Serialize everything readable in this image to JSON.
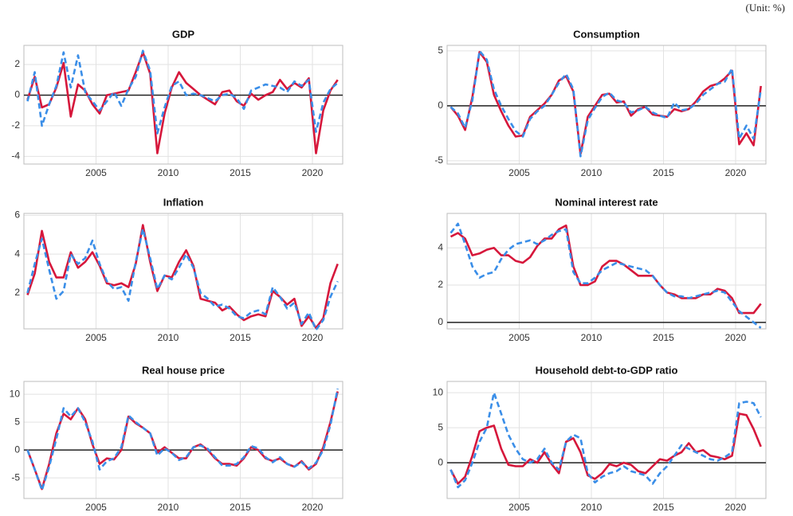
{
  "unit_note": "(Unit: %)",
  "chart_data": [
    {
      "type": "line",
      "title": "GDP",
      "x": [
        2000.25,
        2000.75,
        2001.25,
        2001.75,
        2002.25,
        2002.75,
        2003.25,
        2003.75,
        2004.25,
        2004.75,
        2005.25,
        2005.75,
        2006.25,
        2006.75,
        2007.25,
        2007.75,
        2008.25,
        2008.75,
        2009.25,
        2009.75,
        2010.25,
        2010.75,
        2011.25,
        2011.75,
        2012.25,
        2012.75,
        2013.25,
        2013.75,
        2014.25,
        2014.75,
        2015.25,
        2015.75,
        2016.25,
        2016.75,
        2017.25,
        2017.75,
        2018.25,
        2018.75,
        2019.25,
        2019.75,
        2020.25,
        2020.75,
        2021.25,
        2021.75
      ],
      "xlim": [
        2000,
        2022.1
      ],
      "xticks": [
        2005,
        2010,
        2015,
        2020
      ],
      "ylim": [
        -4.5,
        3.25
      ],
      "yticks": [
        -4,
        -2,
        0,
        2
      ],
      "grid": true,
      "hlines": [
        0
      ],
      "series": [
        {
          "color": "#d6173b",
          "line_style": "solid",
          "values": [
            -0.3,
            1.2,
            -0.8,
            -0.6,
            0.5,
            2.1,
            -1.4,
            0.7,
            0.3,
            -0.6,
            -1.2,
            0,
            0.1,
            0.2,
            0.3,
            1.5,
            2.8,
            1.4,
            -3.8,
            -1.2,
            0.5,
            1.5,
            0.8,
            0.4,
            0,
            -0.3,
            -0.6,
            0.2,
            0.3,
            -0.4,
            -0.7,
            0.1,
            -0.3,
            0,
            0.2,
            1.0,
            0.4,
            0.8,
            0.5,
            1.1,
            -3.8,
            -1.0,
            0.3,
            1.0
          ]
        },
        {
          "color": "#3a8ee8",
          "line_style": "dashed",
          "values": [
            -0.4,
            1.5,
            -2.0,
            -0.6,
            0.6,
            2.8,
            0.5,
            2.6,
            0.2,
            -0.4,
            -1.0,
            -0.4,
            0.2,
            -0.7,
            0.4,
            1.2,
            2.9,
            1.6,
            -2.5,
            -0.8,
            0.6,
            0.9,
            0,
            0.1,
            0,
            -0.2,
            -0.4,
            0,
            0.1,
            -0.2,
            -0.9,
            0.3,
            0.5,
            0.7,
            0.6,
            0.5,
            0.2,
            0.9,
            0.6,
            1.0,
            -2.4,
            -0.5,
            0.4,
            0.8
          ]
        }
      ]
    },
    {
      "type": "line",
      "title": "Consumption",
      "x": [
        2000.25,
        2000.75,
        2001.25,
        2001.75,
        2002.25,
        2002.75,
        2003.25,
        2003.75,
        2004.25,
        2004.75,
        2005.25,
        2005.75,
        2006.25,
        2006.75,
        2007.25,
        2007.75,
        2008.25,
        2008.75,
        2009.25,
        2009.75,
        2010.25,
        2010.75,
        2011.25,
        2011.75,
        2012.25,
        2012.75,
        2013.25,
        2013.75,
        2014.25,
        2014.75,
        2015.25,
        2015.75,
        2016.25,
        2016.75,
        2017.25,
        2017.75,
        2018.25,
        2018.75,
        2019.25,
        2019.75,
        2020.25,
        2020.75,
        2021.25,
        2021.75
      ],
      "xlim": [
        2000,
        2022.1
      ],
      "xticks": [
        2005,
        2010,
        2015,
        2020
      ],
      "ylim": [
        -5.3,
        5.5
      ],
      "yticks": [
        -5,
        0,
        5
      ],
      "grid": true,
      "hlines": [
        0
      ],
      "series": [
        {
          "color": "#d6173b",
          "line_style": "solid",
          "values": [
            -0.1,
            -0.9,
            -2.2,
            0.8,
            4.9,
            4.0,
            1.0,
            -0.5,
            -1.8,
            -2.8,
            -2.7,
            -1.0,
            -0.4,
            0.2,
            1.0,
            2.3,
            2.7,
            1.3,
            -4.4,
            -1.0,
            0,
            1.0,
            1.1,
            0.3,
            0.4,
            -0.9,
            -0.3,
            -0.1,
            -0.8,
            -0.9,
            -1.0,
            -0.3,
            -0.5,
            -0.3,
            0.4,
            1.3,
            1.8,
            2.0,
            2.5,
            3.2,
            -3.5,
            -2.5,
            -3.6,
            1.8
          ]
        },
        {
          "color": "#3a8ee8",
          "line_style": "dashed",
          "values": [
            -0.1,
            -0.7,
            -2.0,
            0.5,
            5.0,
            4.2,
            1.5,
            0,
            -1.2,
            -2.3,
            -2.8,
            -1.2,
            -0.5,
            0,
            1.0,
            2.1,
            2.9,
            1.5,
            -4.6,
            -1.3,
            -0.2,
            0.8,
            1.2,
            0.5,
            0.3,
            -0.6,
            -0.4,
            -0.1,
            -0.6,
            -0.9,
            -1.1,
            0.3,
            -0.4,
            -0.3,
            0.2,
            1.0,
            1.5,
            2.0,
            2.2,
            3.4,
            -3.0,
            -1.8,
            -3.0,
            1.5
          ]
        }
      ]
    },
    {
      "type": "line",
      "title": "Inflation",
      "x": [
        2000.25,
        2000.75,
        2001.25,
        2001.75,
        2002.25,
        2002.75,
        2003.25,
        2003.75,
        2004.25,
        2004.75,
        2005.25,
        2005.75,
        2006.25,
        2006.75,
        2007.25,
        2007.75,
        2008.25,
        2008.75,
        2009.25,
        2009.75,
        2010.25,
        2010.75,
        2011.25,
        2011.75,
        2012.25,
        2012.75,
        2013.25,
        2013.75,
        2014.25,
        2014.75,
        2015.25,
        2015.75,
        2016.25,
        2016.75,
        2017.25,
        2017.75,
        2018.25,
        2018.75,
        2019.25,
        2019.75,
        2020.25,
        2020.75,
        2021.25,
        2021.75
      ],
      "xlim": [
        2000,
        2022.1
      ],
      "xticks": [
        2005,
        2010,
        2015,
        2020
      ],
      "ylim": [
        0.15,
        6.1
      ],
      "yticks": [
        2,
        4,
        6
      ],
      "grid": true,
      "hlines": [],
      "series": [
        {
          "color": "#d6173b",
          "line_style": "solid",
          "values": [
            1.9,
            3.0,
            5.2,
            3.6,
            2.8,
            2.8,
            4.1,
            3.3,
            3.6,
            4.1,
            3.4,
            2.5,
            2.4,
            2.5,
            2.3,
            3.5,
            5.5,
            3.6,
            2.1,
            2.9,
            2.8,
            3.6,
            4.2,
            3.4,
            1.7,
            1.6,
            1.5,
            1.1,
            1.3,
            0.9,
            0.6,
            0.8,
            0.9,
            0.8,
            2.1,
            1.8,
            1.4,
            1.7,
            0.3,
            0.8,
            0.2,
            0.7,
            2.5,
            3.5
          ]
        },
        {
          "color": "#3a8ee8",
          "line_style": "dashed",
          "values": [
            2.0,
            3.5,
            4.8,
            3.2,
            1.7,
            2.1,
            4.0,
            3.5,
            3.8,
            4.7,
            3.5,
            2.6,
            2.2,
            2.3,
            1.6,
            3.6,
            5.3,
            3.8,
            2.2,
            2.9,
            2.7,
            3.3,
            4.0,
            3.3,
            2.0,
            1.7,
            1.3,
            1.4,
            1.2,
            0.8,
            0.7,
            1.0,
            1.1,
            0.9,
            2.3,
            1.8,
            1.2,
            1.5,
            0.4,
            1.0,
            0.1,
            0.6,
            1.8,
            2.6
          ]
        }
      ]
    },
    {
      "type": "line",
      "title": "Nominal interest rate",
      "x": [
        2000.25,
        2000.75,
        2001.25,
        2001.75,
        2002.25,
        2002.75,
        2003.25,
        2003.75,
        2004.25,
        2004.75,
        2005.25,
        2005.75,
        2006.25,
        2006.75,
        2007.25,
        2007.75,
        2008.25,
        2008.75,
        2009.25,
        2009.75,
        2010.25,
        2010.75,
        2011.25,
        2011.75,
        2012.25,
        2012.75,
        2013.25,
        2013.75,
        2014.25,
        2014.75,
        2015.25,
        2015.75,
        2016.25,
        2016.75,
        2017.25,
        2017.75,
        2018.25,
        2018.75,
        2019.25,
        2019.75,
        2020.25,
        2020.75,
        2021.25,
        2021.75
      ],
      "xlim": [
        2000,
        2022.1
      ],
      "xticks": [
        2005,
        2010,
        2015,
        2020
      ],
      "ylim": [
        -0.35,
        5.85
      ],
      "yticks": [
        0,
        2,
        4
      ],
      "grid": true,
      "hlines": [
        0
      ],
      "series": [
        {
          "color": "#d6173b",
          "line_style": "solid",
          "values": [
            4.6,
            4.8,
            4.5,
            3.6,
            3.7,
            3.9,
            4.0,
            3.6,
            3.6,
            3.3,
            3.2,
            3.5,
            4.1,
            4.5,
            4.5,
            5.0,
            5.2,
            3.0,
            2.0,
            2.0,
            2.2,
            3.0,
            3.3,
            3.3,
            3.1,
            2.8,
            2.5,
            2.5,
            2.5,
            2.0,
            1.6,
            1.5,
            1.3,
            1.3,
            1.3,
            1.5,
            1.5,
            1.8,
            1.7,
            1.3,
            0.5,
            0.5,
            0.5,
            1.0
          ]
        },
        {
          "color": "#3a8ee8",
          "line_style": "dashed",
          "values": [
            4.8,
            5.3,
            4.2,
            3.0,
            2.4,
            2.6,
            2.7,
            3.4,
            3.9,
            4.2,
            4.3,
            4.4,
            4.2,
            4.4,
            4.7,
            4.9,
            5.0,
            2.7,
            2.1,
            2.1,
            2.4,
            2.8,
            3.0,
            3.2,
            3.1,
            3.0,
            2.9,
            2.8,
            2.5,
            2.0,
            1.6,
            1.4,
            1.4,
            1.3,
            1.4,
            1.5,
            1.6,
            1.7,
            1.6,
            1.1,
            0.6,
            0.3,
            0,
            -0.3
          ]
        }
      ]
    },
    {
      "type": "line",
      "title": "Real house price",
      "x": [
        2000.25,
        2000.75,
        2001.25,
        2001.75,
        2002.25,
        2002.75,
        2003.25,
        2003.75,
        2004.25,
        2004.75,
        2005.25,
        2005.75,
        2006.25,
        2006.75,
        2007.25,
        2007.75,
        2008.25,
        2008.75,
        2009.25,
        2009.75,
        2010.25,
        2010.75,
        2011.25,
        2011.75,
        2012.25,
        2012.75,
        2013.25,
        2013.75,
        2014.25,
        2014.75,
        2015.25,
        2015.75,
        2016.25,
        2016.75,
        2017.25,
        2017.75,
        2018.25,
        2018.75,
        2019.25,
        2019.75,
        2020.25,
        2020.75,
        2021.25,
        2021.75
      ],
      "xlim": [
        2000,
        2022.1
      ],
      "xticks": [
        2005,
        2010,
        2015,
        2020
      ],
      "ylim": [
        -8.7,
        12.3
      ],
      "yticks": [
        -5,
        0,
        5,
        10
      ],
      "grid": true,
      "hlines": [
        0
      ],
      "series": [
        {
          "color": "#d6173b",
          "line_style": "solid",
          "values": [
            0,
            -3.5,
            -7,
            -2.5,
            3,
            6.5,
            5.5,
            7.5,
            5.5,
            1,
            -2.5,
            -1.5,
            -1.7,
            0,
            6,
            4.8,
            4,
            3,
            -0.5,
            0.5,
            -0.5,
            -1.5,
            -1.5,
            0.5,
            1,
            0,
            -1.5,
            -2.5,
            -2.5,
            -2.8,
            -1.5,
            0.5,
            0,
            -1.5,
            -2,
            -1.5,
            -2.5,
            -3,
            -2,
            -3.5,
            -2.5,
            0.5,
            5,
            10.5
          ]
        },
        {
          "color": "#3a8ee8",
          "line_style": "dashed",
          "values": [
            0,
            -3.5,
            -7.2,
            -3,
            2,
            7.5,
            6,
            7.5,
            5,
            1.5,
            -3.5,
            -2,
            -1.5,
            0.5,
            6.2,
            5,
            4,
            3,
            -1,
            0.3,
            -0.5,
            -1.8,
            -1.3,
            0.5,
            0.8,
            0.2,
            -1.3,
            -2.8,
            -2.8,
            -2.5,
            -1.3,
            0.7,
            0.3,
            -1.3,
            -2.2,
            -1.3,
            -2.5,
            -3,
            -2.2,
            -3.3,
            -2.3,
            0,
            4.5,
            11
          ]
        }
      ]
    },
    {
      "type": "line",
      "title": "Household debt-to-GDP ratio",
      "x": [
        2000.25,
        2000.75,
        2001.25,
        2001.75,
        2002.25,
        2002.75,
        2003.25,
        2003.75,
        2004.25,
        2004.75,
        2005.25,
        2005.75,
        2006.25,
        2006.75,
        2007.25,
        2007.75,
        2008.25,
        2008.75,
        2009.25,
        2009.75,
        2010.25,
        2010.75,
        2011.25,
        2011.75,
        2012.25,
        2012.75,
        2013.25,
        2013.75,
        2014.25,
        2014.75,
        2015.25,
        2015.75,
        2016.25,
        2016.75,
        2017.25,
        2017.75,
        2018.25,
        2018.75,
        2019.25,
        2019.75,
        2020.25,
        2020.75,
        2021.25,
        2021.75
      ],
      "xlim": [
        2000,
        2022.1
      ],
      "xticks": [
        2005,
        2010,
        2015,
        2020
      ],
      "ylim": [
        -5.1,
        11.6
      ],
      "yticks": [
        0,
        5,
        10
      ],
      "grid": true,
      "hlines": [
        0
      ],
      "series": [
        {
          "color": "#d6173b",
          "line_style": "solid",
          "values": [
            -1,
            -3,
            -2,
            1,
            4.5,
            5,
            5.3,
            2,
            -0.3,
            -0.5,
            -0.5,
            0.5,
            0,
            1.5,
            -0.2,
            -1.5,
            3,
            3.5,
            1.5,
            -1.8,
            -2.3,
            -1.5,
            -0.2,
            -0.5,
            0,
            -0.3,
            -1.2,
            -1.5,
            -0.5,
            0.5,
            0.3,
            1,
            1.5,
            2.8,
            1.5,
            1.8,
            1,
            0.8,
            0.5,
            1,
            7,
            6.8,
            4.8,
            2.3
          ]
        },
        {
          "color": "#3a8ee8",
          "line_style": "dashed",
          "values": [
            -1,
            -3.5,
            -2.5,
            0,
            3,
            5,
            10,
            7,
            4,
            2,
            0.5,
            0,
            0.5,
            2,
            0,
            -1,
            3,
            4,
            3.5,
            -1.5,
            -2.8,
            -2,
            -1.5,
            -1.2,
            -0.5,
            -1.2,
            -1.5,
            -1.8,
            -3,
            -1.5,
            -0.5,
            1,
            2.5,
            2,
            1.5,
            1,
            0.5,
            0.3,
            0.8,
            1.5,
            8.5,
            8.7,
            8.5,
            6.5
          ]
        }
      ]
    }
  ]
}
